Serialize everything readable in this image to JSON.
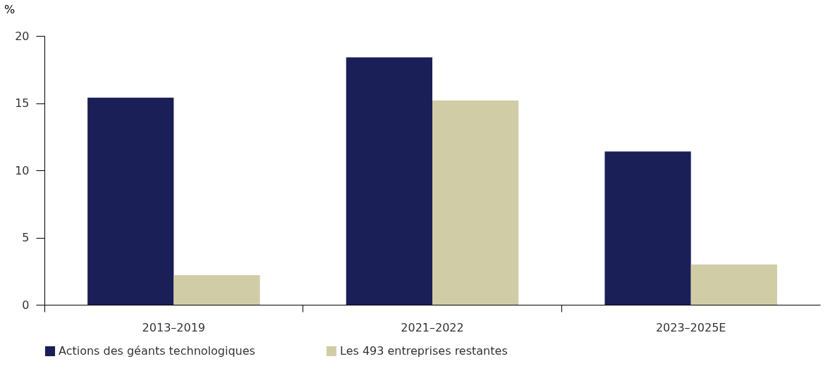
{
  "chart_data": {
    "type": "bar",
    "ylabel": "%",
    "categories": [
      "2013–2019",
      "2021–2022",
      "2023–2025E"
    ],
    "series": [
      {
        "name": "Actions des géants technologiques",
        "color": "#1b1f57",
        "values": [
          15.4,
          18.4,
          11.4
        ]
      },
      {
        "name": "Les 493 entreprises restantes",
        "color": "#d0cca6",
        "values": [
          2.2,
          15.2,
          3.0
        ]
      }
    ],
    "ylim": [
      0,
      20
    ],
    "yticks": [
      0,
      5,
      10,
      15,
      20
    ],
    "grid": false,
    "legend": "bottom"
  }
}
